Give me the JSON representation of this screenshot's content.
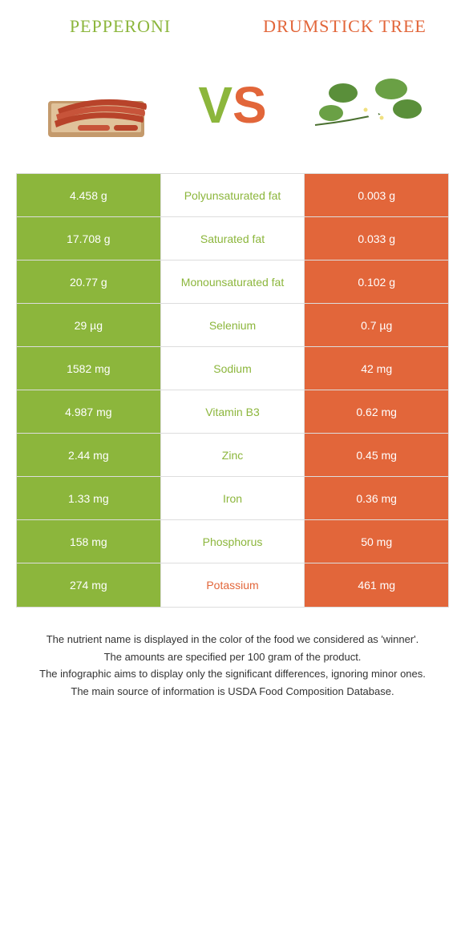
{
  "colors": {
    "green": "#8cb63c",
    "orange": "#e2663a",
    "left_title": "#8cb63c",
    "right_title": "#e2663a"
  },
  "header": {
    "left": "Pepperoni",
    "right": "Drumstick tree"
  },
  "vs": {
    "v": "V",
    "s": "S"
  },
  "rows": [
    {
      "left": "4.458 g",
      "label": "Polyunsaturated fat",
      "right": "0.003 g",
      "winner": "left"
    },
    {
      "left": "17.708 g",
      "label": "Saturated fat",
      "right": "0.033 g",
      "winner": "left"
    },
    {
      "left": "20.77 g",
      "label": "Monounsaturated fat",
      "right": "0.102 g",
      "winner": "left"
    },
    {
      "left": "29 µg",
      "label": "Selenium",
      "right": "0.7 µg",
      "winner": "left"
    },
    {
      "left": "1582 mg",
      "label": "Sodium",
      "right": "42 mg",
      "winner": "left"
    },
    {
      "left": "4.987 mg",
      "label": "Vitamin B3",
      "right": "0.62 mg",
      "winner": "left"
    },
    {
      "left": "2.44 mg",
      "label": "Zinc",
      "right": "0.45 mg",
      "winner": "left"
    },
    {
      "left": "1.33 mg",
      "label": "Iron",
      "right": "0.36 mg",
      "winner": "left"
    },
    {
      "left": "158 mg",
      "label": "Phosphorus",
      "right": "50 mg",
      "winner": "left"
    },
    {
      "left": "274 mg",
      "label": "Potassium",
      "right": "461 mg",
      "winner": "right"
    }
  ],
  "footer": [
    "The nutrient name is displayed in the color of the food we considered as 'winner'.",
    "The amounts are specified per 100 gram of the product.",
    "The infographic aims to display only the significant differences, ignoring minor ones.",
    "The main source of information is USDA Food Composition Database."
  ]
}
